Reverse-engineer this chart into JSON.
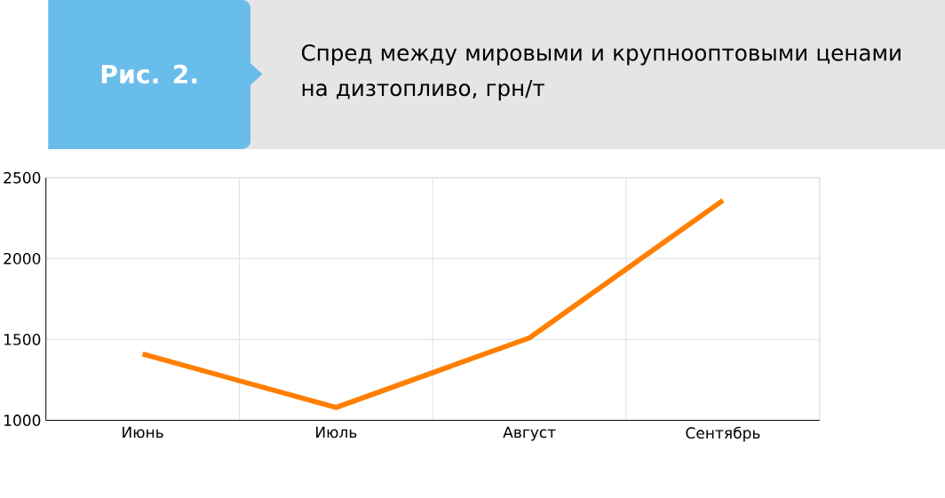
{
  "chart_data": {
    "type": "line",
    "title": "Спред между мировыми и крупнооптовыми ценами на дизтопливо, грн/т",
    "annotations": [
      "Рис. 2."
    ],
    "categories": [
      "Июнь",
      "Июль",
      "Август",
      "Сентябрь"
    ],
    "values": [
      1410,
      1080,
      1510,
      2360
    ],
    "color": "#ff7f00",
    "ylim": [
      1000,
      2500
    ],
    "yticks": [
      1000,
      1500,
      2000,
      2500
    ],
    "grid": true,
    "marker": "none",
    "line_style": "solid"
  }
}
